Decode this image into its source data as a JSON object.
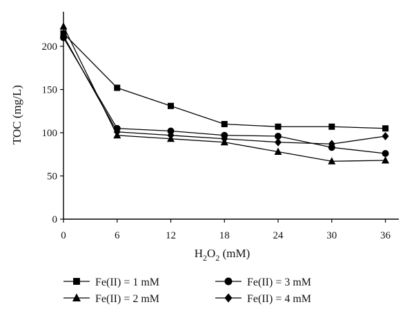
{
  "chart_data": {
    "type": "line",
    "xlabel": "H2O2 (mM)",
    "xlabel_main": "H",
    "xlabel_sub1": "2",
    "xlabel_mid": "O",
    "xlabel_sub2": "2",
    "xlabel_unit": " (mM)",
    "ylabel": "TOC (mg/L)",
    "x": [
      0,
      6,
      12,
      18,
      24,
      30,
      36
    ],
    "xticks": [
      "0",
      "6",
      "12",
      "18",
      "24",
      "30",
      "36"
    ],
    "yticks": [
      "0",
      "50",
      "100",
      "150",
      "200"
    ],
    "xlim": [
      0,
      37.5
    ],
    "ylim": [
      0,
      240
    ],
    "grid": false,
    "legend_position": "bottom",
    "series": [
      {
        "name": "Fe(II) = 1 mM",
        "marker": "square",
        "values": [
          215,
          152,
          131,
          110,
          107,
          107,
          105
        ]
      },
      {
        "name": "Fe(II) = 2 mM",
        "marker": "triangle",
        "values": [
          223,
          97,
          93,
          89,
          78,
          67,
          68
        ]
      },
      {
        "name": "Fe(II) = 3 mM",
        "marker": "circle",
        "values": [
          210,
          105,
          102,
          97,
          96,
          83,
          76
        ]
      },
      {
        "name": "Fe(II) = 4 mM",
        "marker": "diamond",
        "values": [
          212,
          101,
          97,
          93,
          89,
          87,
          96
        ]
      }
    ],
    "colors": {
      "line": "#000000",
      "marker": "#000000",
      "axis": "#000000"
    }
  }
}
